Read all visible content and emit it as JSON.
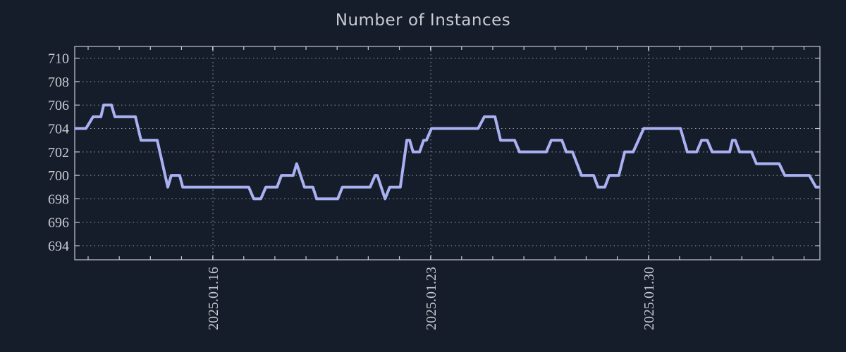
{
  "title": "Number of Instances",
  "colors": {
    "background": "#161d2a",
    "line": "#a9b1f2",
    "border": "#c5c9d1",
    "grid": "#9aa0a8",
    "text": "#c8ccd3"
  },
  "chart_data": {
    "type": "line",
    "title": "Number of Instances",
    "xlabel": "",
    "ylabel": "",
    "grid": true,
    "legend": "none",
    "ylim": [
      692.8,
      711
    ],
    "xlim_days": [
      0,
      23.94
    ],
    "y_ticks": [
      694,
      696,
      698,
      700,
      702,
      704,
      706,
      708,
      710
    ],
    "x_major_ticks": [
      {
        "day": 4.44,
        "label": "2025.01.16"
      },
      {
        "day": 11.44,
        "label": "2025.01.23"
      },
      {
        "day": 18.44,
        "label": "2025.01.30"
      }
    ],
    "x_minor_ticks": {
      "start_day": 0.43,
      "step_days": 1,
      "count": 24
    },
    "series": [
      {
        "name": "instances",
        "points": [
          [
            0,
            704
          ],
          [
            0.36,
            704
          ],
          [
            0.59,
            705
          ],
          [
            0.84,
            705
          ],
          [
            0.93,
            706
          ],
          [
            1.18,
            706
          ],
          [
            1.29,
            705
          ],
          [
            1.95,
            705
          ],
          [
            2.13,
            703
          ],
          [
            2.65,
            703
          ],
          [
            2.99,
            699
          ],
          [
            3.1,
            700
          ],
          [
            3.37,
            700
          ],
          [
            3.47,
            699
          ],
          [
            5.59,
            699
          ],
          [
            5.75,
            698
          ],
          [
            5.98,
            698
          ],
          [
            6.14,
            699
          ],
          [
            6.5,
            699
          ],
          [
            6.64,
            700
          ],
          [
            7.02,
            700
          ],
          [
            7.13,
            701
          ],
          [
            7.38,
            699
          ],
          [
            7.65,
            699
          ],
          [
            7.77,
            698
          ],
          [
            8.45,
            698
          ],
          [
            8.6,
            699
          ],
          [
            9.49,
            699
          ],
          [
            9.65,
            700
          ],
          [
            9.72,
            700
          ],
          [
            9.97,
            698
          ],
          [
            10.12,
            699
          ],
          [
            10.46,
            699
          ],
          [
            10.67,
            703
          ],
          [
            10.76,
            703
          ],
          [
            10.87,
            702
          ],
          [
            11.08,
            702
          ],
          [
            11.21,
            703
          ],
          [
            11.3,
            703
          ],
          [
            11.46,
            704
          ],
          [
            12.96,
            704
          ],
          [
            13.16,
            705
          ],
          [
            13.5,
            705
          ],
          [
            13.68,
            703
          ],
          [
            14.13,
            703
          ],
          [
            14.29,
            702
          ],
          [
            15.15,
            702
          ],
          [
            15.31,
            703
          ],
          [
            15.65,
            703
          ],
          [
            15.79,
            702
          ],
          [
            15.99,
            702
          ],
          [
            16.28,
            700
          ],
          [
            16.67,
            700
          ],
          [
            16.81,
            699
          ],
          [
            17.03,
            699
          ],
          [
            17.17,
            700
          ],
          [
            17.48,
            700
          ],
          [
            17.67,
            702
          ],
          [
            17.94,
            702
          ],
          [
            18.28,
            704
          ],
          [
            19.46,
            704
          ],
          [
            19.68,
            702
          ],
          [
            19.98,
            702
          ],
          [
            20.14,
            703
          ],
          [
            20.32,
            703
          ],
          [
            20.48,
            702
          ],
          [
            21.04,
            702
          ],
          [
            21.13,
            703
          ],
          [
            21.22,
            703
          ],
          [
            21.36,
            702
          ],
          [
            21.74,
            702
          ],
          [
            21.9,
            701
          ],
          [
            22.63,
            701
          ],
          [
            22.81,
            700
          ],
          [
            23.6,
            700
          ],
          [
            23.81,
            699
          ],
          [
            23.94,
            699
          ]
        ]
      }
    ]
  }
}
